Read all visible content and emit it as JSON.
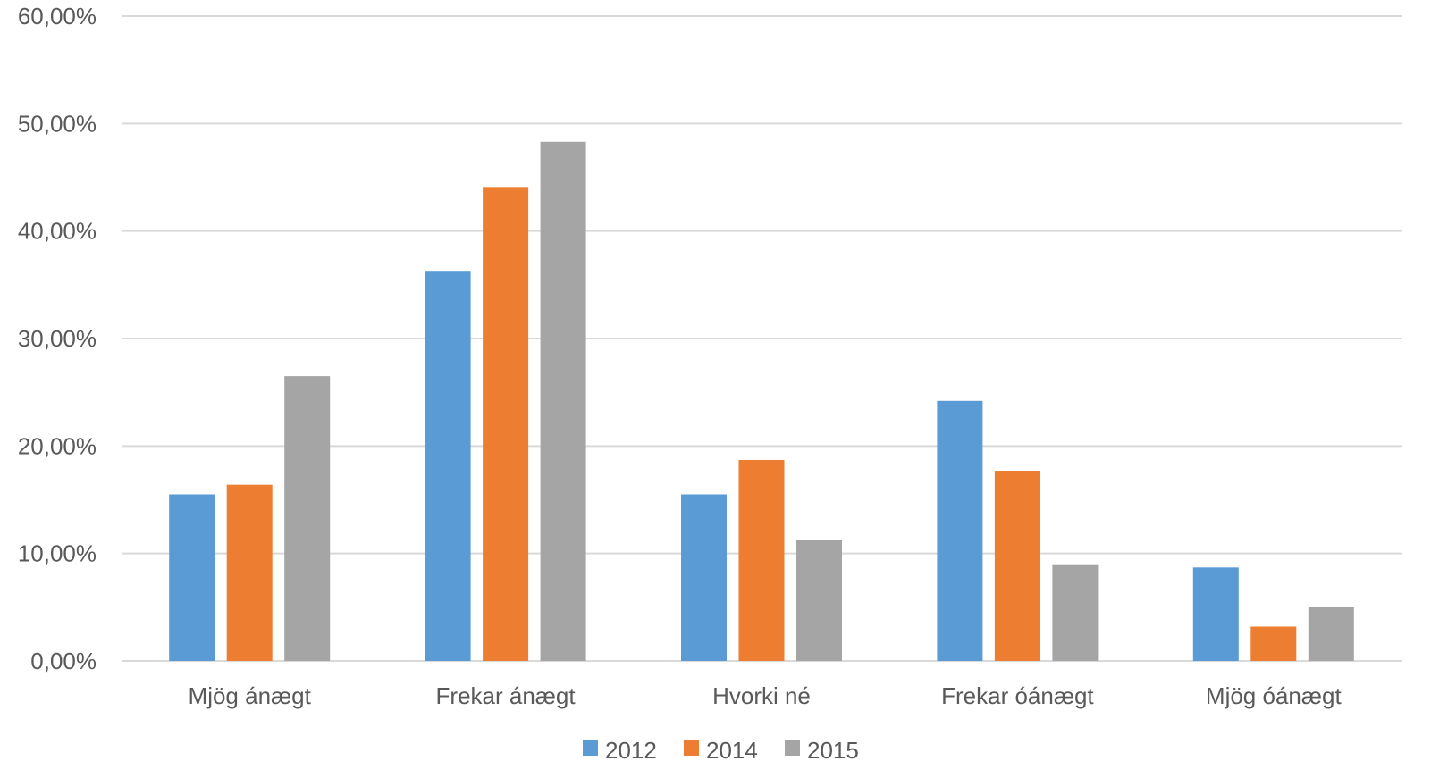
{
  "chart_data": {
    "type": "bar",
    "title": "",
    "xlabel": "",
    "ylabel": "",
    "categories": [
      "Mjög ánægt",
      "Frekar ánægt",
      "Hvorki né",
      "Frekar óánægt",
      "Mjög óánægt"
    ],
    "series": [
      {
        "name": "2012",
        "color": "#5b9bd5",
        "values": [
          15.5,
          36.3,
          15.5,
          24.2,
          8.7
        ]
      },
      {
        "name": "2014",
        "color": "#ed7d31",
        "values": [
          16.4,
          44.1,
          18.7,
          17.7,
          3.2
        ]
      },
      {
        "name": "2015",
        "color": "#a5a5a5",
        "values": [
          26.5,
          48.3,
          11.3,
          9.0,
          5.0
        ]
      }
    ],
    "ylim": [
      0,
      60
    ],
    "yticks": [
      "0,00%",
      "10,00%",
      "20,00%",
      "30,00%",
      "40,00%",
      "50,00%",
      "60,00%"
    ],
    "grid": true,
    "legend_position": "bottom"
  }
}
